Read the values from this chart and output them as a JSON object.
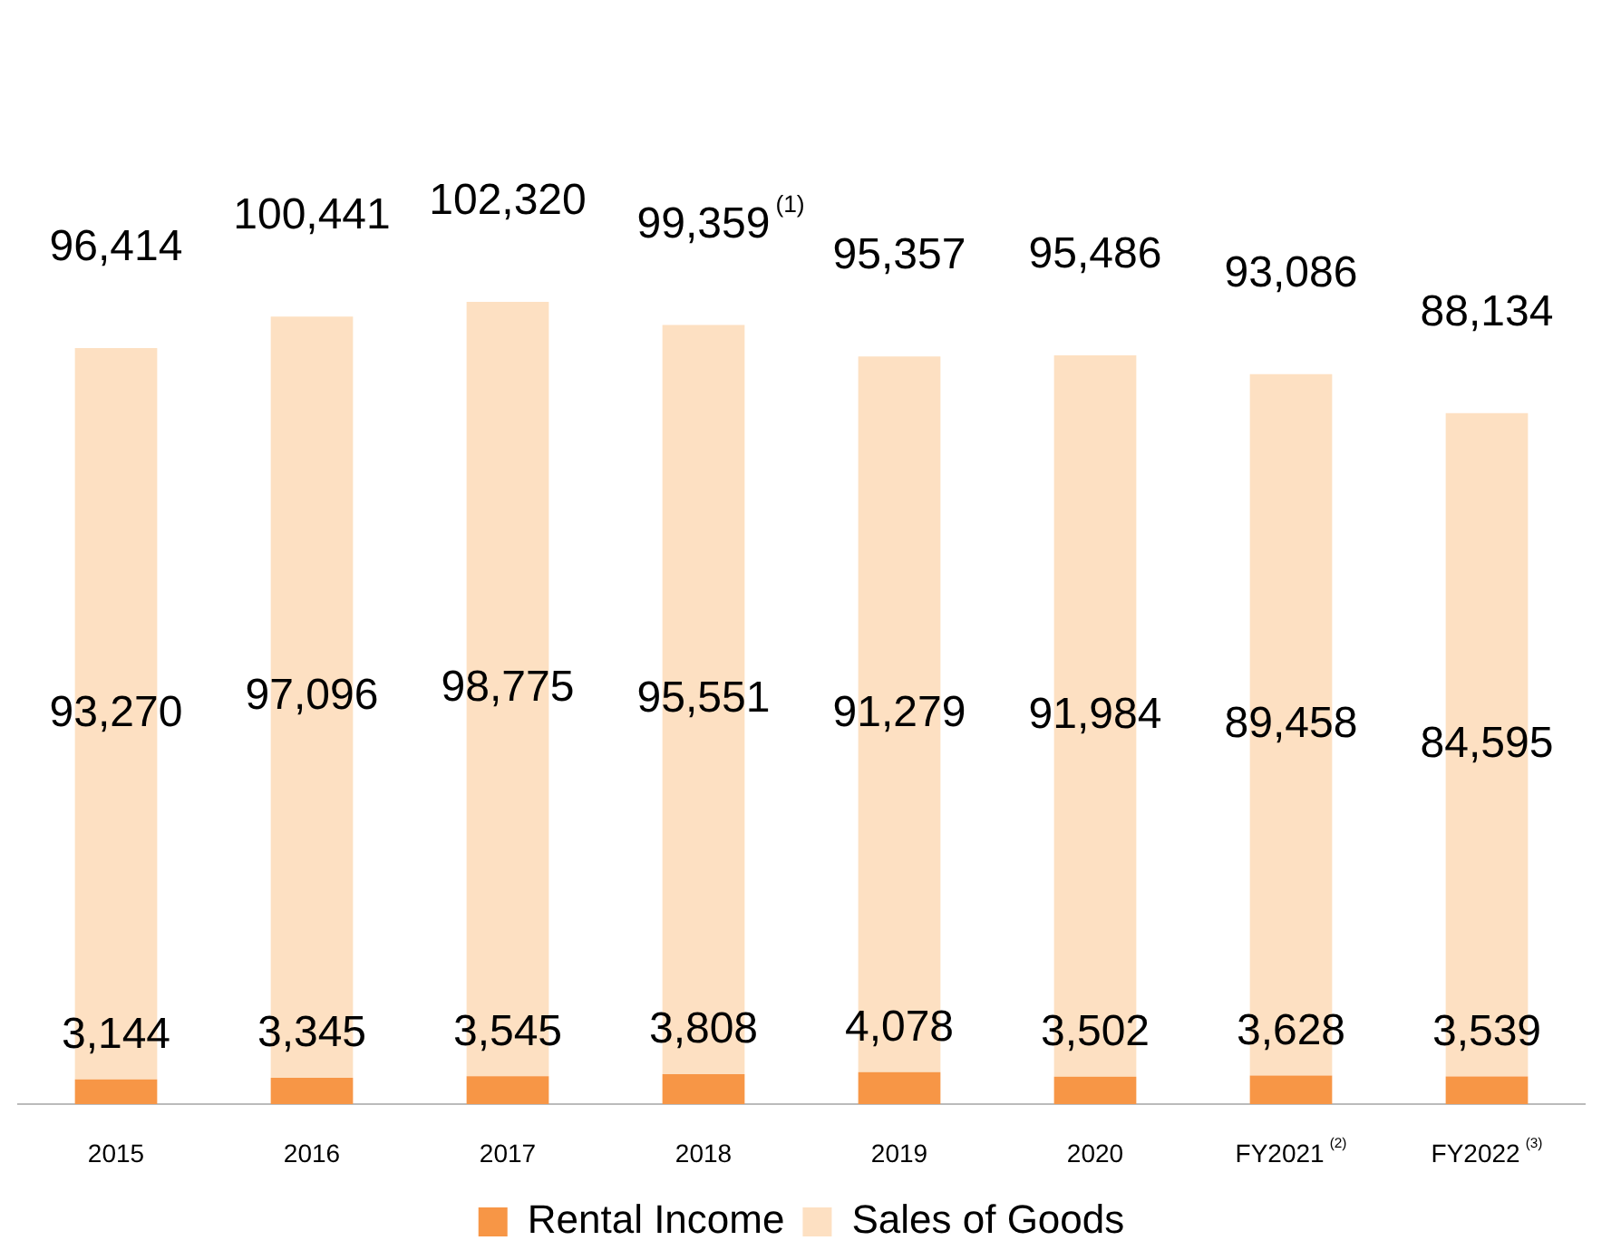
{
  "chart_data": {
    "type": "bar",
    "stacked": true,
    "legend": "bottom",
    "tick_labels": "x",
    "categories": [
      "2015",
      "2016",
      "2017",
      "2018",
      "2019",
      "2020",
      "FY2021$^{(2)}$",
      "FY2022$^{(3)}$"
    ],
    "series": [
      {
        "name": "Rental Income",
        "color": "#f79646",
        "values": [
          3144,
          3345,
          3545,
          3808,
          4078,
          3502,
          3628,
          3539
        ],
        "value_labels": [
          "3,144",
          "3,345",
          "3,545",
          "3,808",
          "4,078",
          "3,502",
          "3,628",
          "3,539"
        ]
      },
      {
        "name": "Sales of Goods",
        "color": "#fde0c2",
        "values": [
          93270,
          97096,
          98775,
          95551,
          91279,
          91984,
          89458,
          84595
        ],
        "value_labels": [
          "93,270",
          "97,096",
          "98,775",
          "95,551",
          "91,279",
          "91,984",
          "89,458",
          "84,595"
        ]
      }
    ],
    "totals": [
      "96,414",
      "100,441",
      "102,320",
      "99,359$^{(1)}$",
      "95,357",
      "95,486",
      "93,086",
      "88,134"
    ]
  }
}
